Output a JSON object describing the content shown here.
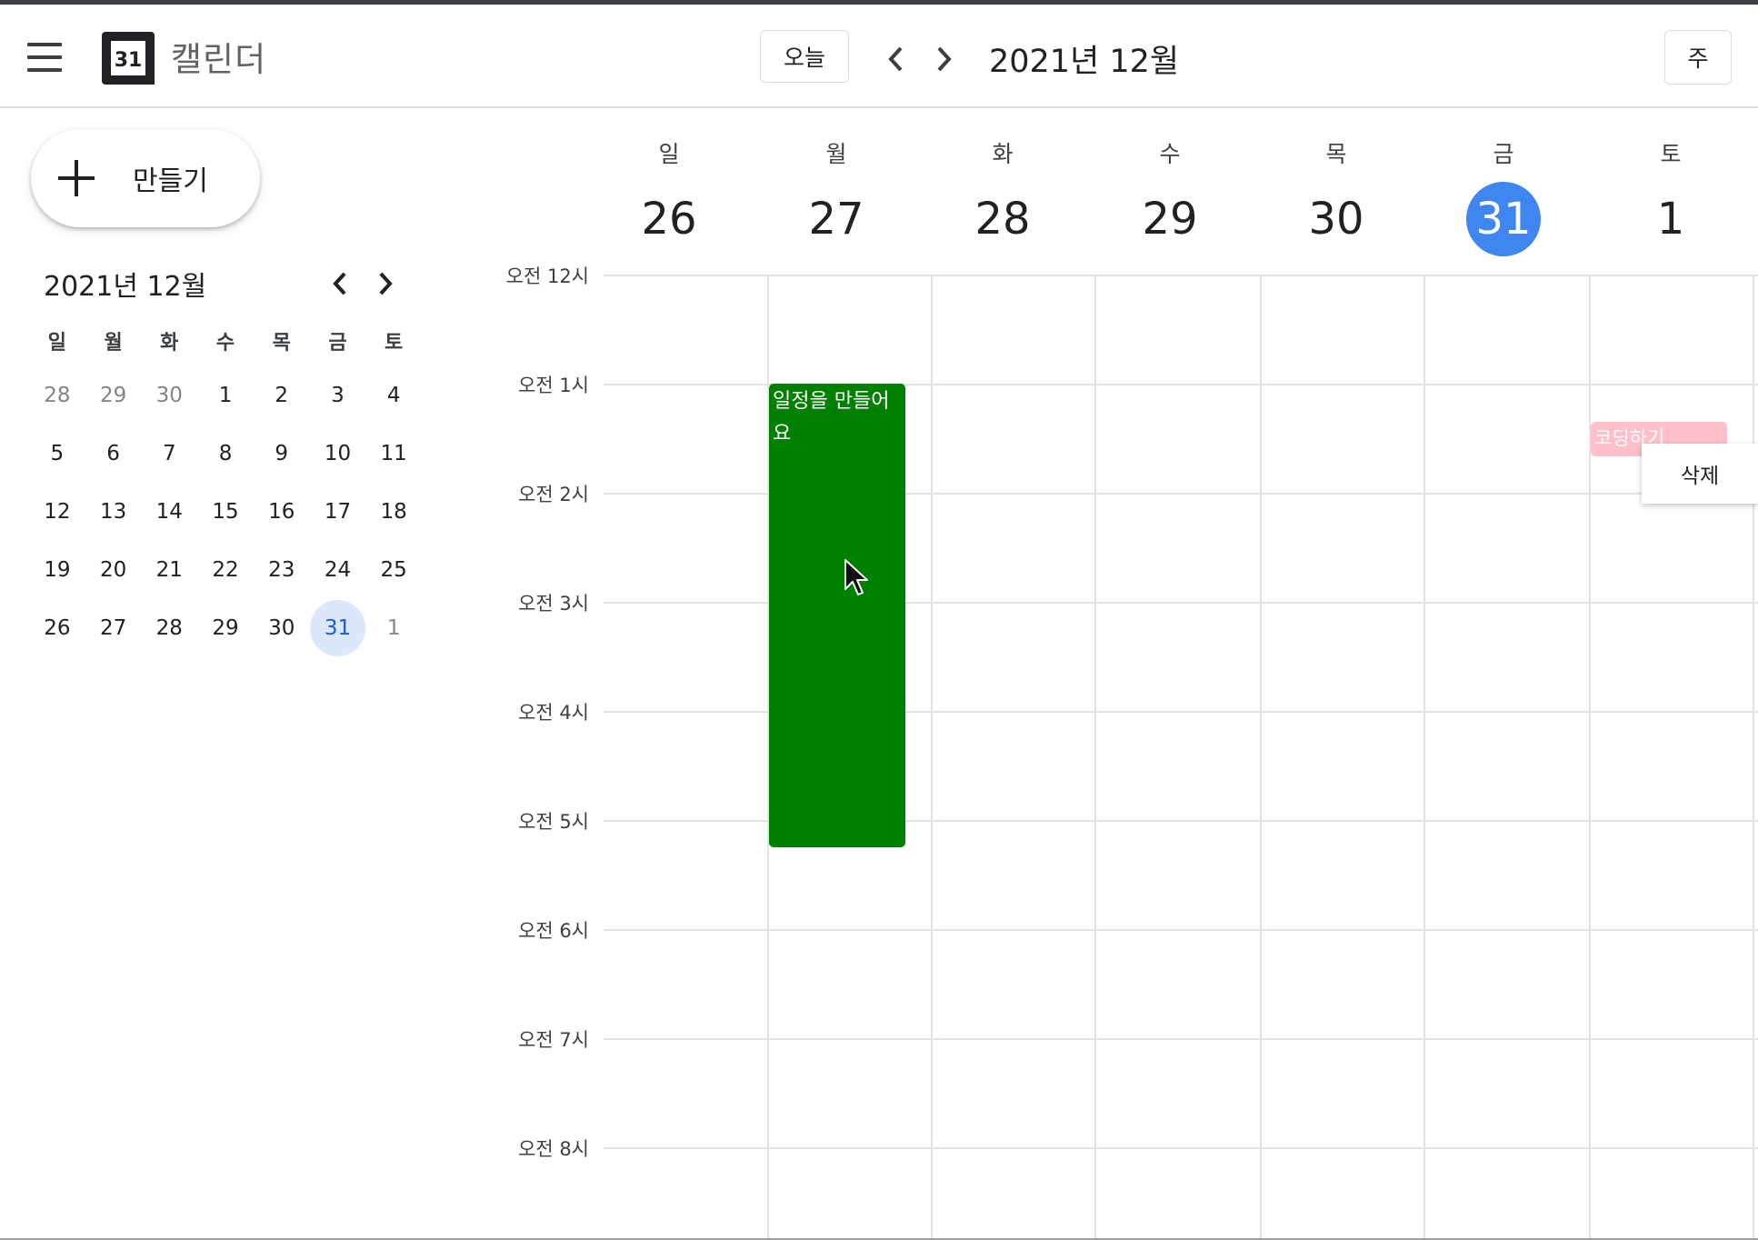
{
  "header": {
    "app_title": "캘린더",
    "logo_text": "31",
    "today_label": "오늘",
    "period_title": "2021년 12월",
    "view_label": "주"
  },
  "sidebar": {
    "create_label": "만들기",
    "mini_calendar": {
      "title": "2021년 12월",
      "weekdays": [
        "일",
        "월",
        "화",
        "수",
        "목",
        "금",
        "토"
      ],
      "weeks": [
        [
          "28",
          "29",
          "30",
          "1",
          "2",
          "3",
          "4"
        ],
        [
          "5",
          "6",
          "7",
          "8",
          "9",
          "10",
          "11"
        ],
        [
          "12",
          "13",
          "14",
          "15",
          "16",
          "17",
          "18"
        ],
        [
          "19",
          "20",
          "21",
          "22",
          "23",
          "24",
          "25"
        ],
        [
          "26",
          "27",
          "28",
          "29",
          "30",
          "31",
          "1"
        ]
      ],
      "selected_date": "31"
    }
  },
  "week": {
    "days": [
      {
        "name": "일",
        "num": "26"
      },
      {
        "name": "월",
        "num": "27"
      },
      {
        "name": "화",
        "num": "28"
      },
      {
        "name": "수",
        "num": "29"
      },
      {
        "name": "목",
        "num": "30"
      },
      {
        "name": "금",
        "num": "31",
        "today": true
      },
      {
        "name": "토",
        "num": "1"
      }
    ],
    "hours": [
      "오전 12시",
      "오전 1시",
      "오전 2시",
      "오전 3시",
      "오전 4시",
      "오전 5시",
      "오전 6시",
      "오전 7시",
      "오전 8시"
    ]
  },
  "events": {
    "green": {
      "title": "일정을 만들어요",
      "color": "#008000"
    },
    "pink": {
      "title": "코딩하기",
      "color": "#ffc0cb"
    }
  },
  "context_menu": {
    "delete_label": "삭제"
  },
  "colors": {
    "today": "#3f86f0",
    "selected_bg": "#dbe8fb",
    "gridline": "#e3e3e3"
  }
}
